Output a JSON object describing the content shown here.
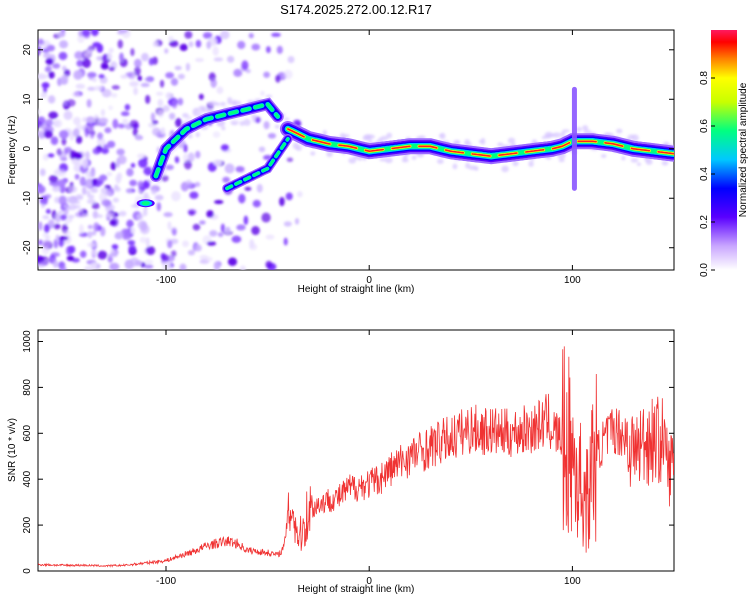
{
  "figure_title": "S174.2025.272.00.12.R17",
  "chart_data": [
    {
      "type": "heatmap",
      "title": "S174.2025.272.00.12.R17",
      "xlabel": "Height of straight line (km)",
      "ylabel": "Frequency (Hz)",
      "xlim": [
        -163,
        150
      ],
      "ylim": [
        -24.5,
        24
      ],
      "xticks": [
        -100,
        0,
        100
      ],
      "yticks": [
        -20,
        -10,
        0,
        10,
        20
      ],
      "colorbar": {
        "label": "Normalized spectral amplitude",
        "range": [
          0,
          1
        ],
        "ticks": [
          "0.0",
          "0.2",
          "0.4",
          "0.6",
          "0.8"
        ]
      },
      "ridge": {
        "x": [
          -110,
          -100,
          -90,
          -80,
          -70,
          -60,
          -50,
          -40,
          -30,
          -20,
          -10,
          0,
          10,
          20,
          30,
          40,
          50,
          60,
          70,
          80,
          90,
          95,
          100,
          110,
          120,
          130,
          140,
          150
        ],
        "freq": [
          -11,
          0,
          4,
          6,
          7,
          8,
          9,
          4,
          2,
          1,
          0.5,
          -0.5,
          0,
          0.5,
          0.5,
          -0.5,
          -1,
          -1.5,
          -1,
          -0.5,
          0,
          0.5,
          1.5,
          1.5,
          1,
          0,
          -0.5,
          -1
        ],
        "secondary_x": [
          -70,
          -60,
          -50,
          -45,
          -40
        ],
        "secondary_freq": [
          -8,
          -6,
          -4,
          -1,
          2
        ]
      }
    },
    {
      "type": "line",
      "xlabel": "Height of straight line (km)",
      "ylabel": "SNR (10 * v/v)",
      "xlim": [
        -163,
        150
      ],
      "ylim": [
        0,
        1050
      ],
      "xticks": [
        -100,
        0,
        100
      ],
      "yticks": [
        0,
        200,
        400,
        600,
        800,
        1000
      ],
      "series": [
        {
          "name": "SNR",
          "color": "#f03232",
          "x": [
            -163,
            -150,
            -140,
            -130,
            -120,
            -110,
            -100,
            -95,
            -90,
            -85,
            -80,
            -75,
            -70,
            -65,
            -60,
            -55,
            -50,
            -45,
            -42,
            -40,
            -38,
            -36,
            -34,
            -32,
            -30,
            -25,
            -20,
            -15,
            -10,
            -5,
            0,
            5,
            10,
            15,
            20,
            25,
            30,
            35,
            40,
            45,
            50,
            55,
            60,
            65,
            70,
            75,
            80,
            85,
            88,
            90,
            92,
            95,
            98,
            100,
            102,
            104,
            106,
            108,
            110,
            115,
            120,
            125,
            130,
            135,
            140,
            145,
            148,
            150
          ],
          "y": [
            28,
            25,
            25,
            22,
            25,
            35,
            45,
            60,
            75,
            90,
            110,
            120,
            130,
            120,
            90,
            85,
            80,
            70,
            100,
            240,
            300,
            180,
            150,
            200,
            260,
            290,
            310,
            320,
            360,
            370,
            380,
            400,
            440,
            470,
            500,
            520,
            540,
            560,
            580,
            600,
            620,
            610,
            610,
            600,
            600,
            610,
            620,
            640,
            660,
            620,
            600,
            580,
            540,
            500,
            430,
            380,
            320,
            310,
            480,
            560,
            620,
            600,
            520,
            560,
            580,
            560,
            420,
            560
          ]
        }
      ]
    }
  ],
  "colors": {
    "line": "#f03232",
    "axis": "#000000",
    "background": "#ffffff"
  }
}
